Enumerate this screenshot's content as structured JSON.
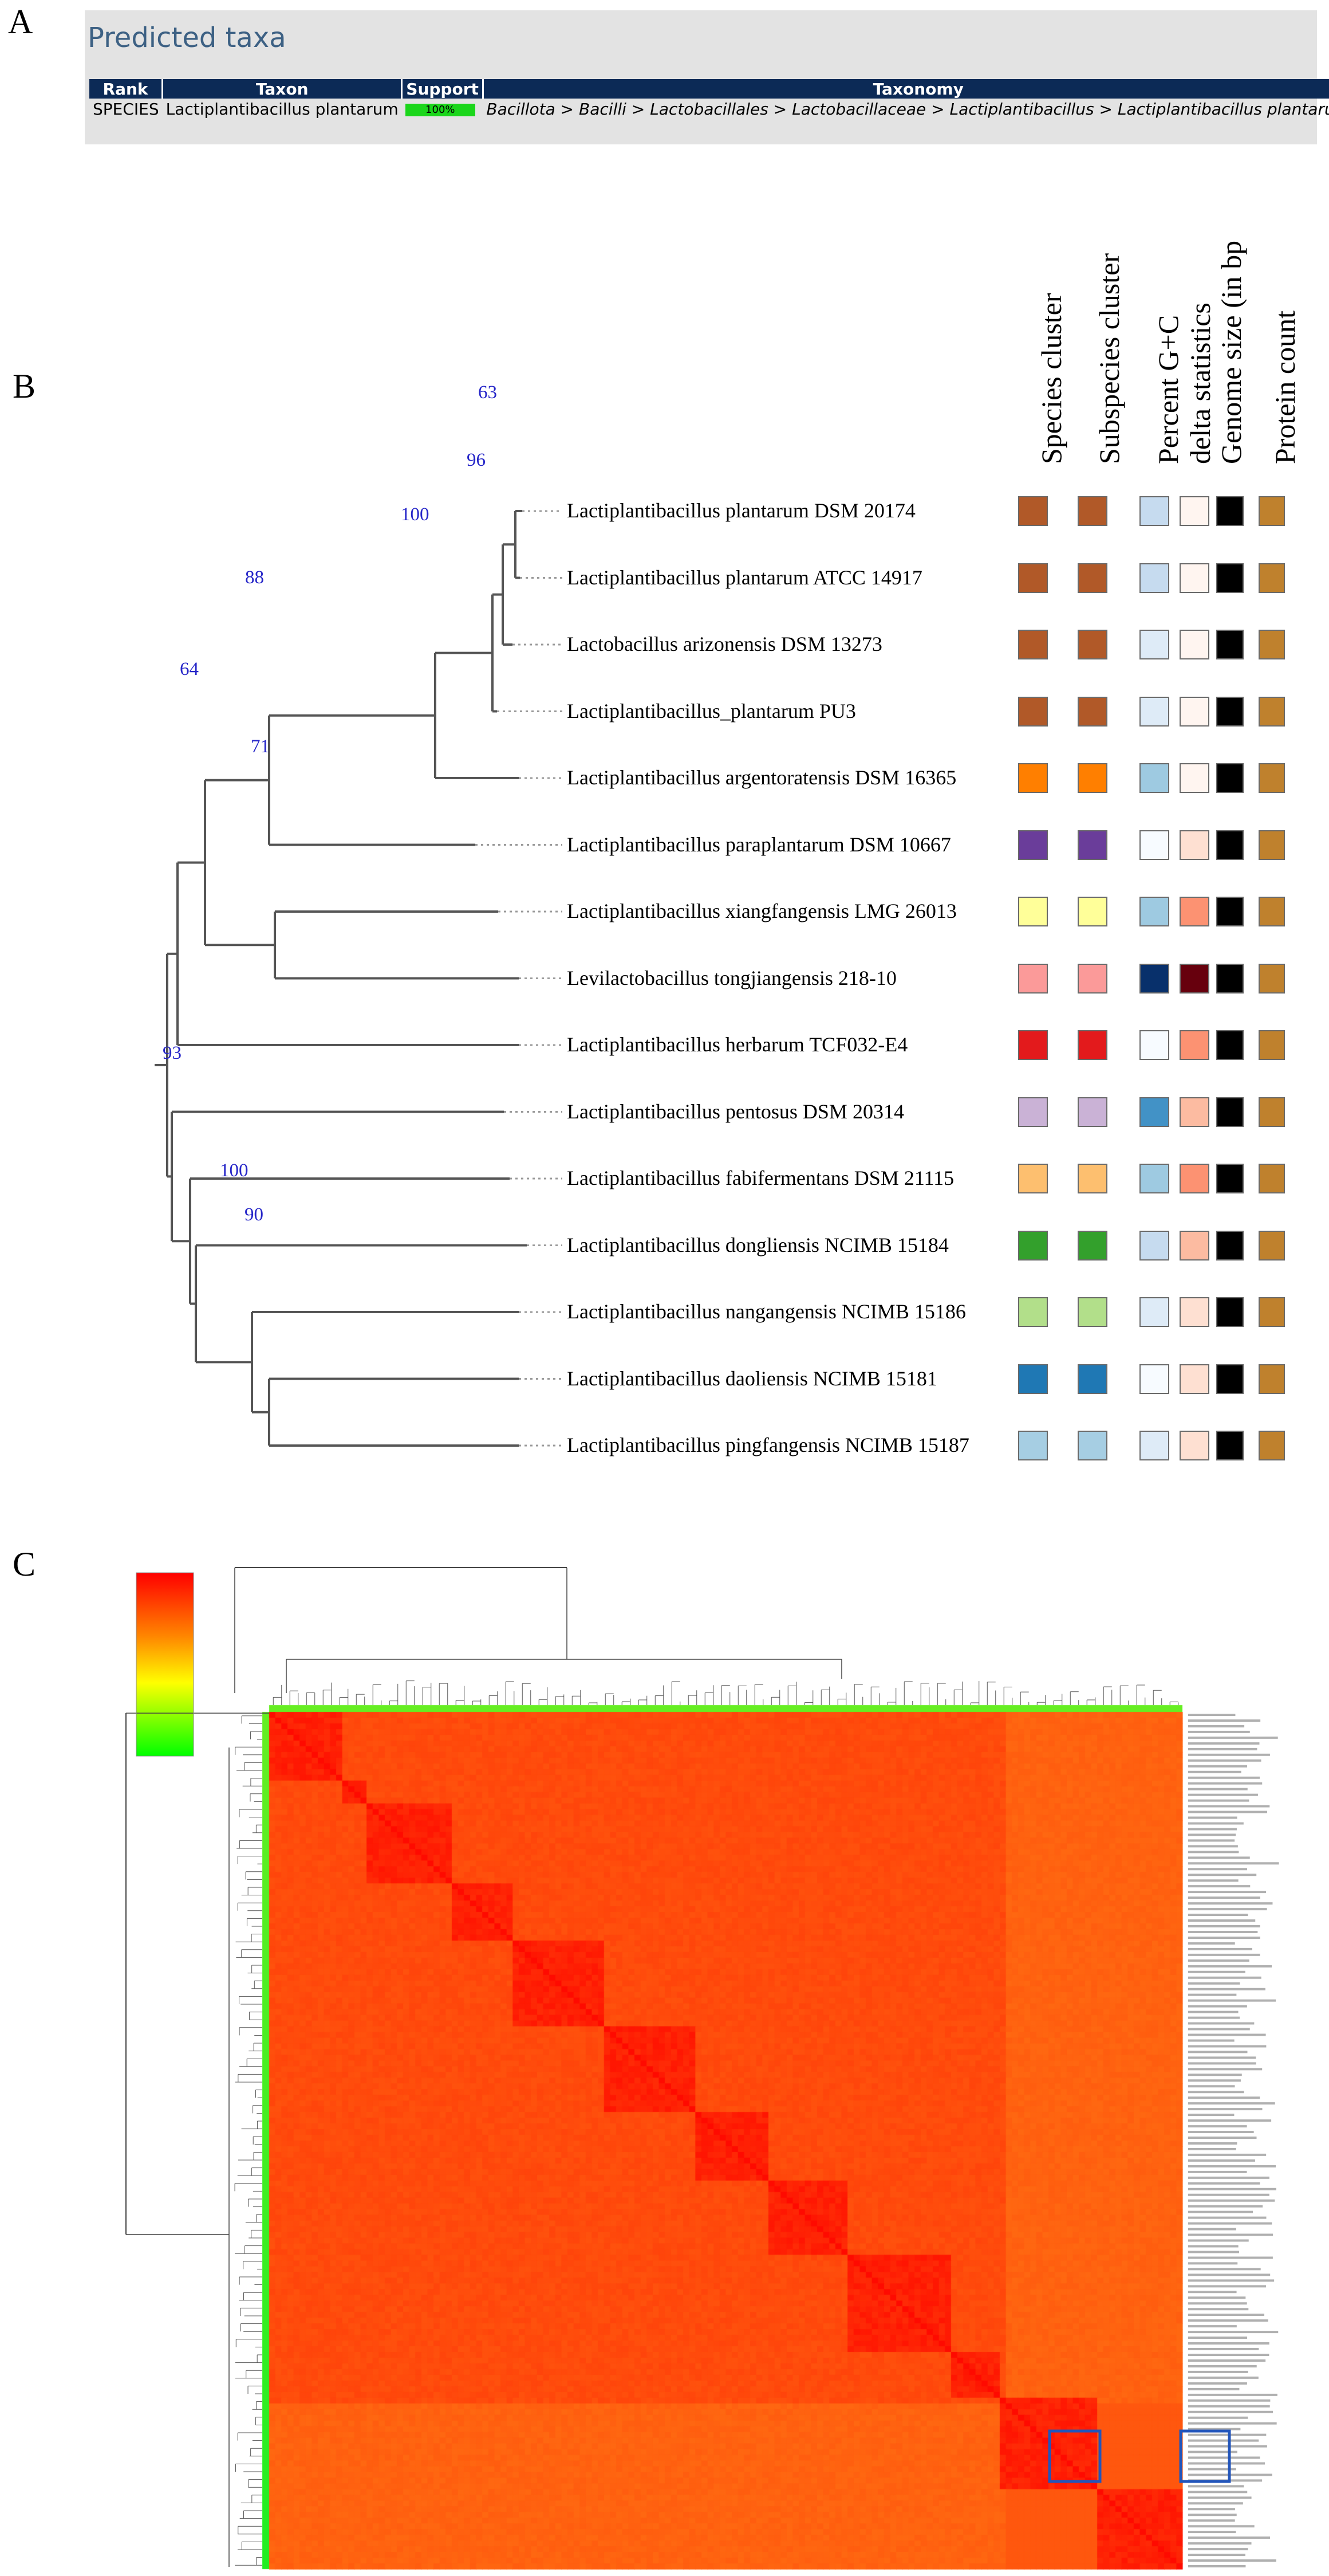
{
  "panels": {
    "a": "A",
    "b": "B",
    "c": "C"
  },
  "panel_a": {
    "title": "Predicted taxa",
    "columns": [
      "Rank",
      "Taxon",
      "Support",
      "Taxonomy"
    ],
    "row": {
      "rank": "SPECIES",
      "taxon": "Lactiplantibacillus plantarum",
      "support": "100%",
      "support_value": 100,
      "taxonomy": "Bacillota > Bacilli > Lactobacillales > Lactobacillaceae > Lactiplantibacillus > Lactiplantibacillus plantarum"
    }
  },
  "panel_b": {
    "column_headers": [
      "Species cluster",
      "Subspecies cluster",
      "Percent G+C",
      "delta statistics",
      "Genome size (in bp",
      "Protein count"
    ],
    "taxa": [
      "Lactiplantibacillus plantarum DSM 20174",
      "Lactiplantibacillus plantarum ATCC 14917",
      "Lactobacillus arizonensis DSM 13273",
      "Lactiplantibacillus_plantarum PU3",
      "Lactiplantibacillus argentoratensis DSM 16365",
      "Lactiplantibacillus paraplantarum DSM 10667",
      "Lactiplantibacillus xiangfangensis LMG 26013",
      "Levilactobacillus tongjiangensis 218-10",
      "Lactiplantibacillus herbarum TCF032-E4",
      "Lactiplantibacillus pentosus DSM 20314",
      "Lactiplantibacillus fabifermentans DSM 21115",
      "Lactiplantibacillus dongliensis NCIMB 15184",
      "Lactiplantibacillus nangangensis NCIMB 15186",
      "Lactiplantibacillus daoliensis NCIMB 15181",
      "Lactiplantibacillus pingfangensis NCIMB 15187"
    ],
    "bootstrap": [
      "63",
      "96",
      "100",
      "88",
      "64",
      "71",
      "93",
      "100",
      "90"
    ],
    "species_colors": [
      "#b15928",
      "#b15928",
      "#b15928",
      "#b15928",
      "#ff7f00",
      "#6a3d9a",
      "#ffff99",
      "#fb9a99",
      "#e31a1c",
      "#cab2d6",
      "#fdbf6f",
      "#33a02c",
      "#b2df8a",
      "#1f78b4",
      "#a6cee3"
    ],
    "subspecies_colors": [
      "#b15928",
      "#b15928",
      "#b15928",
      "#b15928",
      "#ff7f00",
      "#6a3d9a",
      "#ffff99",
      "#fb9a99",
      "#e31a1c",
      "#cab2d6",
      "#fdbf6f",
      "#33a02c",
      "#b2df8a",
      "#1f78b4",
      "#a6cee3"
    ],
    "gc_colors": [
      "#c6dbef",
      "#c6dbef",
      "#deebf7",
      "#deebf7",
      "#9ecae1",
      "#f7fbff",
      "#9ecae1",
      "#08306b",
      "#f7fbff",
      "#4292c6",
      "#9ecae1",
      "#c6dbef",
      "#deebf7",
      "#f7fbff",
      "#deebf7"
    ],
    "delta_colors": [
      "#fff5f0",
      "#fff5f0",
      "#fff5f0",
      "#fff5f0",
      "#fff5f0",
      "#fee0d2",
      "#fc9272",
      "#67000d",
      "#fc9272",
      "#fcbba1",
      "#fc9272",
      "#fcbba1",
      "#fee0d2",
      "#fee0d2",
      "#fee0d2"
    ],
    "genome_colors": [
      "#000000",
      "#000000",
      "#000000",
      "#000000",
      "#000000",
      "#000000",
      "#000000",
      "#000000",
      "#000000",
      "#000000",
      "#000000",
      "#000000",
      "#000000",
      "#000000",
      "#000000"
    ],
    "protein_colors": [
      "#bf812d",
      "#bf812d",
      "#bf812d",
      "#bf812d",
      "#bf812d",
      "#bf812d",
      "#bf812d",
      "#bf812d",
      "#bf812d",
      "#bf812d",
      "#bf812d",
      "#bf812d",
      "#bf812d",
      "#bf812d",
      "#bf812d"
    ]
  },
  "panel_c": {
    "description_type": "heatmap",
    "legend_colors": [
      "#ff0000",
      "#ff8800",
      "#ffff00",
      "#00ff00"
    ],
    "highlight_color": "#2255bb"
  }
}
